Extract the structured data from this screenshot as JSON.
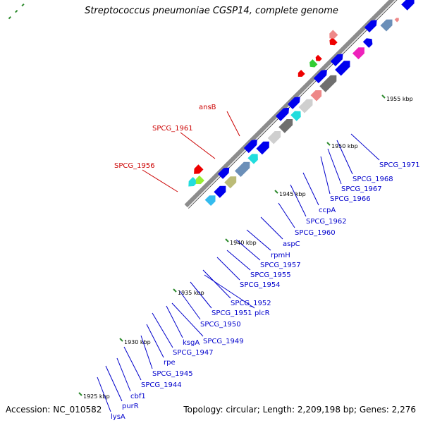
{
  "title": "Streptococcus pneumoniae CGSP14, complete genome",
  "footer": {
    "accession": "Accession: NC_010582",
    "topology": "Topology: circular; Length: 2,209,198 bp; Genes: 2,276"
  },
  "scale_labels": [
    "1925 kbp",
    "1930 kbp",
    "1935 kbp",
    "1940 kbp",
    "1945 kbp",
    "1950 kbp",
    "1955 kbp"
  ],
  "reverse_labels": [
    "ansB",
    "SPCG_1961",
    "SPCG_1956"
  ],
  "forward_labels": [
    "SPCG_1971",
    "SPCG_1968",
    "SPCG_1967",
    "SPCG_1966",
    "SPCG_1962",
    "ccpA",
    "SPCG_1960",
    "aspC",
    "rpmH",
    "SPCG_1957",
    "SPCG_1955",
    "SPCG_1954",
    "SPCG_1952",
    "SPCG_1951",
    "plcR",
    "SPCG_1950",
    "ksgA",
    "SPCG_1949",
    "SPCG_1947",
    "rpe",
    "SPCG_1945",
    "SPCG_1944",
    "cbf1",
    "purR",
    "lysA"
  ],
  "colors": {
    "backbone": "#8c8c8c",
    "gene_blue": "#0000ee",
    "gene_light_blue": "#33bbee",
    "gene_steel": "#6b8fb8",
    "gene_gray": "#6f6f6f",
    "gene_silver": "#cfcfcf",
    "gene_pink": "#ee88aa",
    "gene_magenta": "#ee22bb",
    "gene_red": "#ee0000",
    "gene_green": "#33cc33",
    "gene_lime": "#99ee33",
    "gene_orange": "#ff8800",
    "gene_aqua": "#22dddd",
    "gene_teal": "#22cc99",
    "gene_olive": "#bbbb77",
    "gene_salmon": "#ee8888",
    "label_forward": "#0000cc",
    "label_reverse": "#cc0000",
    "tick": "#2e8b2e"
  }
}
